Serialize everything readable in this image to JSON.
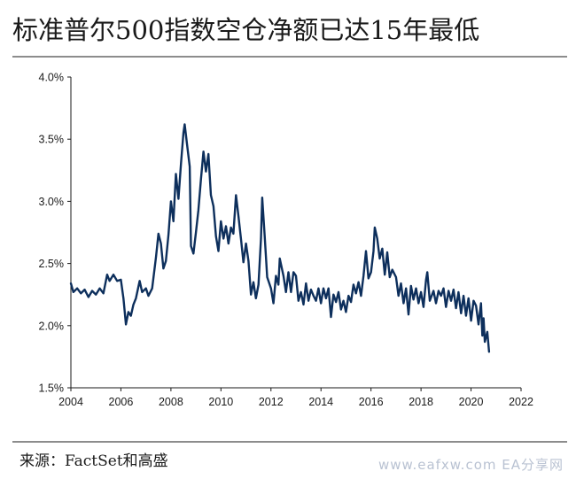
{
  "title": "标准普尔500指数空仓净额已达15年最低",
  "source": "来源：FactSet和高盛",
  "watermark": "www.eafxw.com EA分享网",
  "colors": {
    "line": "#0d2f5c",
    "axis": "#1a1a1a",
    "rule": "#8c8c8c"
  },
  "chart_data": {
    "type": "line",
    "title": "标准普尔500指数空仓净额已达15年最低",
    "xlabel": "",
    "ylabel": "",
    "xlim": [
      2004,
      2022
    ],
    "ylim": [
      1.5,
      4.0
    ],
    "x_ticks": [
      2004,
      2006,
      2008,
      2010,
      2012,
      2014,
      2016,
      2018,
      2020,
      2022
    ],
    "y_ticks": [
      1.5,
      2.0,
      2.5,
      3.0,
      3.5,
      4.0
    ],
    "x_tick_labels": [
      "2004",
      "2006",
      "2008",
      "2010",
      "2012",
      "2014",
      "2016",
      "2018",
      "2020",
      "2022"
    ],
    "y_tick_labels": [
      "1.5%",
      "2.0%",
      "2.5%",
      "3.0%",
      "3.5%",
      "4.0%"
    ],
    "grid": false,
    "series": [
      {
        "points": [
          [
            2004.0,
            2.34
          ],
          [
            2004.1,
            2.27
          ],
          [
            2004.25,
            2.3
          ],
          [
            2004.4,
            2.26
          ],
          [
            2004.55,
            2.29
          ],
          [
            2004.7,
            2.23
          ],
          [
            2004.85,
            2.28
          ],
          [
            2005.0,
            2.25
          ],
          [
            2005.15,
            2.3
          ],
          [
            2005.3,
            2.26
          ],
          [
            2005.45,
            2.41
          ],
          [
            2005.55,
            2.36
          ],
          [
            2005.7,
            2.41
          ],
          [
            2005.85,
            2.36
          ],
          [
            2006.0,
            2.37
          ],
          [
            2006.1,
            2.22
          ],
          [
            2006.2,
            2.01
          ],
          [
            2006.3,
            2.11
          ],
          [
            2006.4,
            2.08
          ],
          [
            2006.5,
            2.17
          ],
          [
            2006.6,
            2.22
          ],
          [
            2006.75,
            2.36
          ],
          [
            2006.85,
            2.27
          ],
          [
            2007.0,
            2.3
          ],
          [
            2007.1,
            2.24
          ],
          [
            2007.25,
            2.3
          ],
          [
            2007.4,
            2.55
          ],
          [
            2007.5,
            2.74
          ],
          [
            2007.6,
            2.66
          ],
          [
            2007.7,
            2.46
          ],
          [
            2007.8,
            2.52
          ],
          [
            2007.9,
            2.73
          ],
          [
            2008.0,
            3.0
          ],
          [
            2008.1,
            2.84
          ],
          [
            2008.2,
            3.22
          ],
          [
            2008.3,
            3.02
          ],
          [
            2008.4,
            3.3
          ],
          [
            2008.5,
            3.55
          ],
          [
            2008.55,
            3.62
          ],
          [
            2008.65,
            3.45
          ],
          [
            2008.75,
            3.28
          ],
          [
            2008.8,
            2.64
          ],
          [
            2008.9,
            2.58
          ],
          [
            2009.0,
            2.75
          ],
          [
            2009.1,
            2.93
          ],
          [
            2009.2,
            3.18
          ],
          [
            2009.3,
            3.4
          ],
          [
            2009.4,
            3.24
          ],
          [
            2009.5,
            3.38
          ],
          [
            2009.6,
            3.05
          ],
          [
            2009.7,
            2.96
          ],
          [
            2009.8,
            2.72
          ],
          [
            2009.9,
            2.6
          ],
          [
            2010.0,
            2.84
          ],
          [
            2010.1,
            2.7
          ],
          [
            2010.2,
            2.8
          ],
          [
            2010.3,
            2.66
          ],
          [
            2010.4,
            2.79
          ],
          [
            2010.5,
            2.74
          ],
          [
            2010.6,
            3.05
          ],
          [
            2010.7,
            2.88
          ],
          [
            2010.8,
            2.7
          ],
          [
            2010.9,
            2.51
          ],
          [
            2011.0,
            2.66
          ],
          [
            2011.1,
            2.52
          ],
          [
            2011.2,
            2.25
          ],
          [
            2011.3,
            2.35
          ],
          [
            2011.4,
            2.22
          ],
          [
            2011.5,
            2.33
          ],
          [
            2011.6,
            2.7
          ],
          [
            2011.65,
            3.03
          ],
          [
            2011.75,
            2.72
          ],
          [
            2011.85,
            2.39
          ],
          [
            2012.0,
            2.3
          ],
          [
            2012.1,
            2.18
          ],
          [
            2012.2,
            2.4
          ],
          [
            2012.3,
            2.33
          ],
          [
            2012.35,
            2.54
          ],
          [
            2012.5,
            2.4
          ],
          [
            2012.6,
            2.27
          ],
          [
            2012.7,
            2.43
          ],
          [
            2012.8,
            2.27
          ],
          [
            2012.9,
            2.43
          ],
          [
            2013.0,
            2.4
          ],
          [
            2013.1,
            2.2
          ],
          [
            2013.2,
            2.27
          ],
          [
            2013.3,
            2.17
          ],
          [
            2013.4,
            2.34
          ],
          [
            2013.5,
            2.2
          ],
          [
            2013.6,
            2.29
          ],
          [
            2013.7,
            2.24
          ],
          [
            2013.8,
            2.2
          ],
          [
            2013.9,
            2.3
          ],
          [
            2014.0,
            2.18
          ],
          [
            2014.1,
            2.3
          ],
          [
            2014.2,
            2.22
          ],
          [
            2014.3,
            2.3
          ],
          [
            2014.4,
            2.07
          ],
          [
            2014.5,
            2.25
          ],
          [
            2014.6,
            2.19
          ],
          [
            2014.7,
            2.27
          ],
          [
            2014.8,
            2.13
          ],
          [
            2014.9,
            2.2
          ],
          [
            2015.0,
            2.11
          ],
          [
            2015.1,
            2.24
          ],
          [
            2015.2,
            2.19
          ],
          [
            2015.3,
            2.33
          ],
          [
            2015.4,
            2.26
          ],
          [
            2015.5,
            2.35
          ],
          [
            2015.6,
            2.24
          ],
          [
            2015.7,
            2.4
          ],
          [
            2015.8,
            2.6
          ],
          [
            2015.9,
            2.38
          ],
          [
            2016.0,
            2.43
          ],
          [
            2016.1,
            2.6
          ],
          [
            2016.15,
            2.79
          ],
          [
            2016.25,
            2.7
          ],
          [
            2016.35,
            2.54
          ],
          [
            2016.45,
            2.62
          ],
          [
            2016.55,
            2.41
          ],
          [
            2016.65,
            2.59
          ],
          [
            2016.75,
            2.39
          ],
          [
            2016.85,
            2.45
          ],
          [
            2017.0,
            2.39
          ],
          [
            2017.1,
            2.24
          ],
          [
            2017.2,
            2.34
          ],
          [
            2017.3,
            2.18
          ],
          [
            2017.4,
            2.3
          ],
          [
            2017.5,
            2.09
          ],
          [
            2017.6,
            2.32
          ],
          [
            2017.7,
            2.21
          ],
          [
            2017.8,
            2.3
          ],
          [
            2017.9,
            2.18
          ],
          [
            2018.0,
            2.27
          ],
          [
            2018.1,
            2.15
          ],
          [
            2018.2,
            2.37
          ],
          [
            2018.25,
            2.43
          ],
          [
            2018.35,
            2.2
          ],
          [
            2018.5,
            2.28
          ],
          [
            2018.6,
            2.18
          ],
          [
            2018.7,
            2.28
          ],
          [
            2018.8,
            2.24
          ],
          [
            2018.9,
            2.3
          ],
          [
            2019.0,
            2.15
          ],
          [
            2019.1,
            2.28
          ],
          [
            2019.2,
            2.2
          ],
          [
            2019.3,
            2.29
          ],
          [
            2019.4,
            2.14
          ],
          [
            2019.5,
            2.27
          ],
          [
            2019.6,
            2.1
          ],
          [
            2019.7,
            2.24
          ],
          [
            2019.8,
            2.08
          ],
          [
            2019.9,
            2.22
          ],
          [
            2020.0,
            2.04
          ],
          [
            2020.1,
            2.2
          ],
          [
            2020.2,
            2.16
          ],
          [
            2020.3,
            2.01
          ],
          [
            2020.4,
            2.18
          ],
          [
            2020.45,
            1.92
          ],
          [
            2020.5,
            2.06
          ],
          [
            2020.55,
            1.87
          ],
          [
            2020.65,
            1.95
          ],
          [
            2020.72,
            1.79
          ]
        ]
      }
    ]
  }
}
